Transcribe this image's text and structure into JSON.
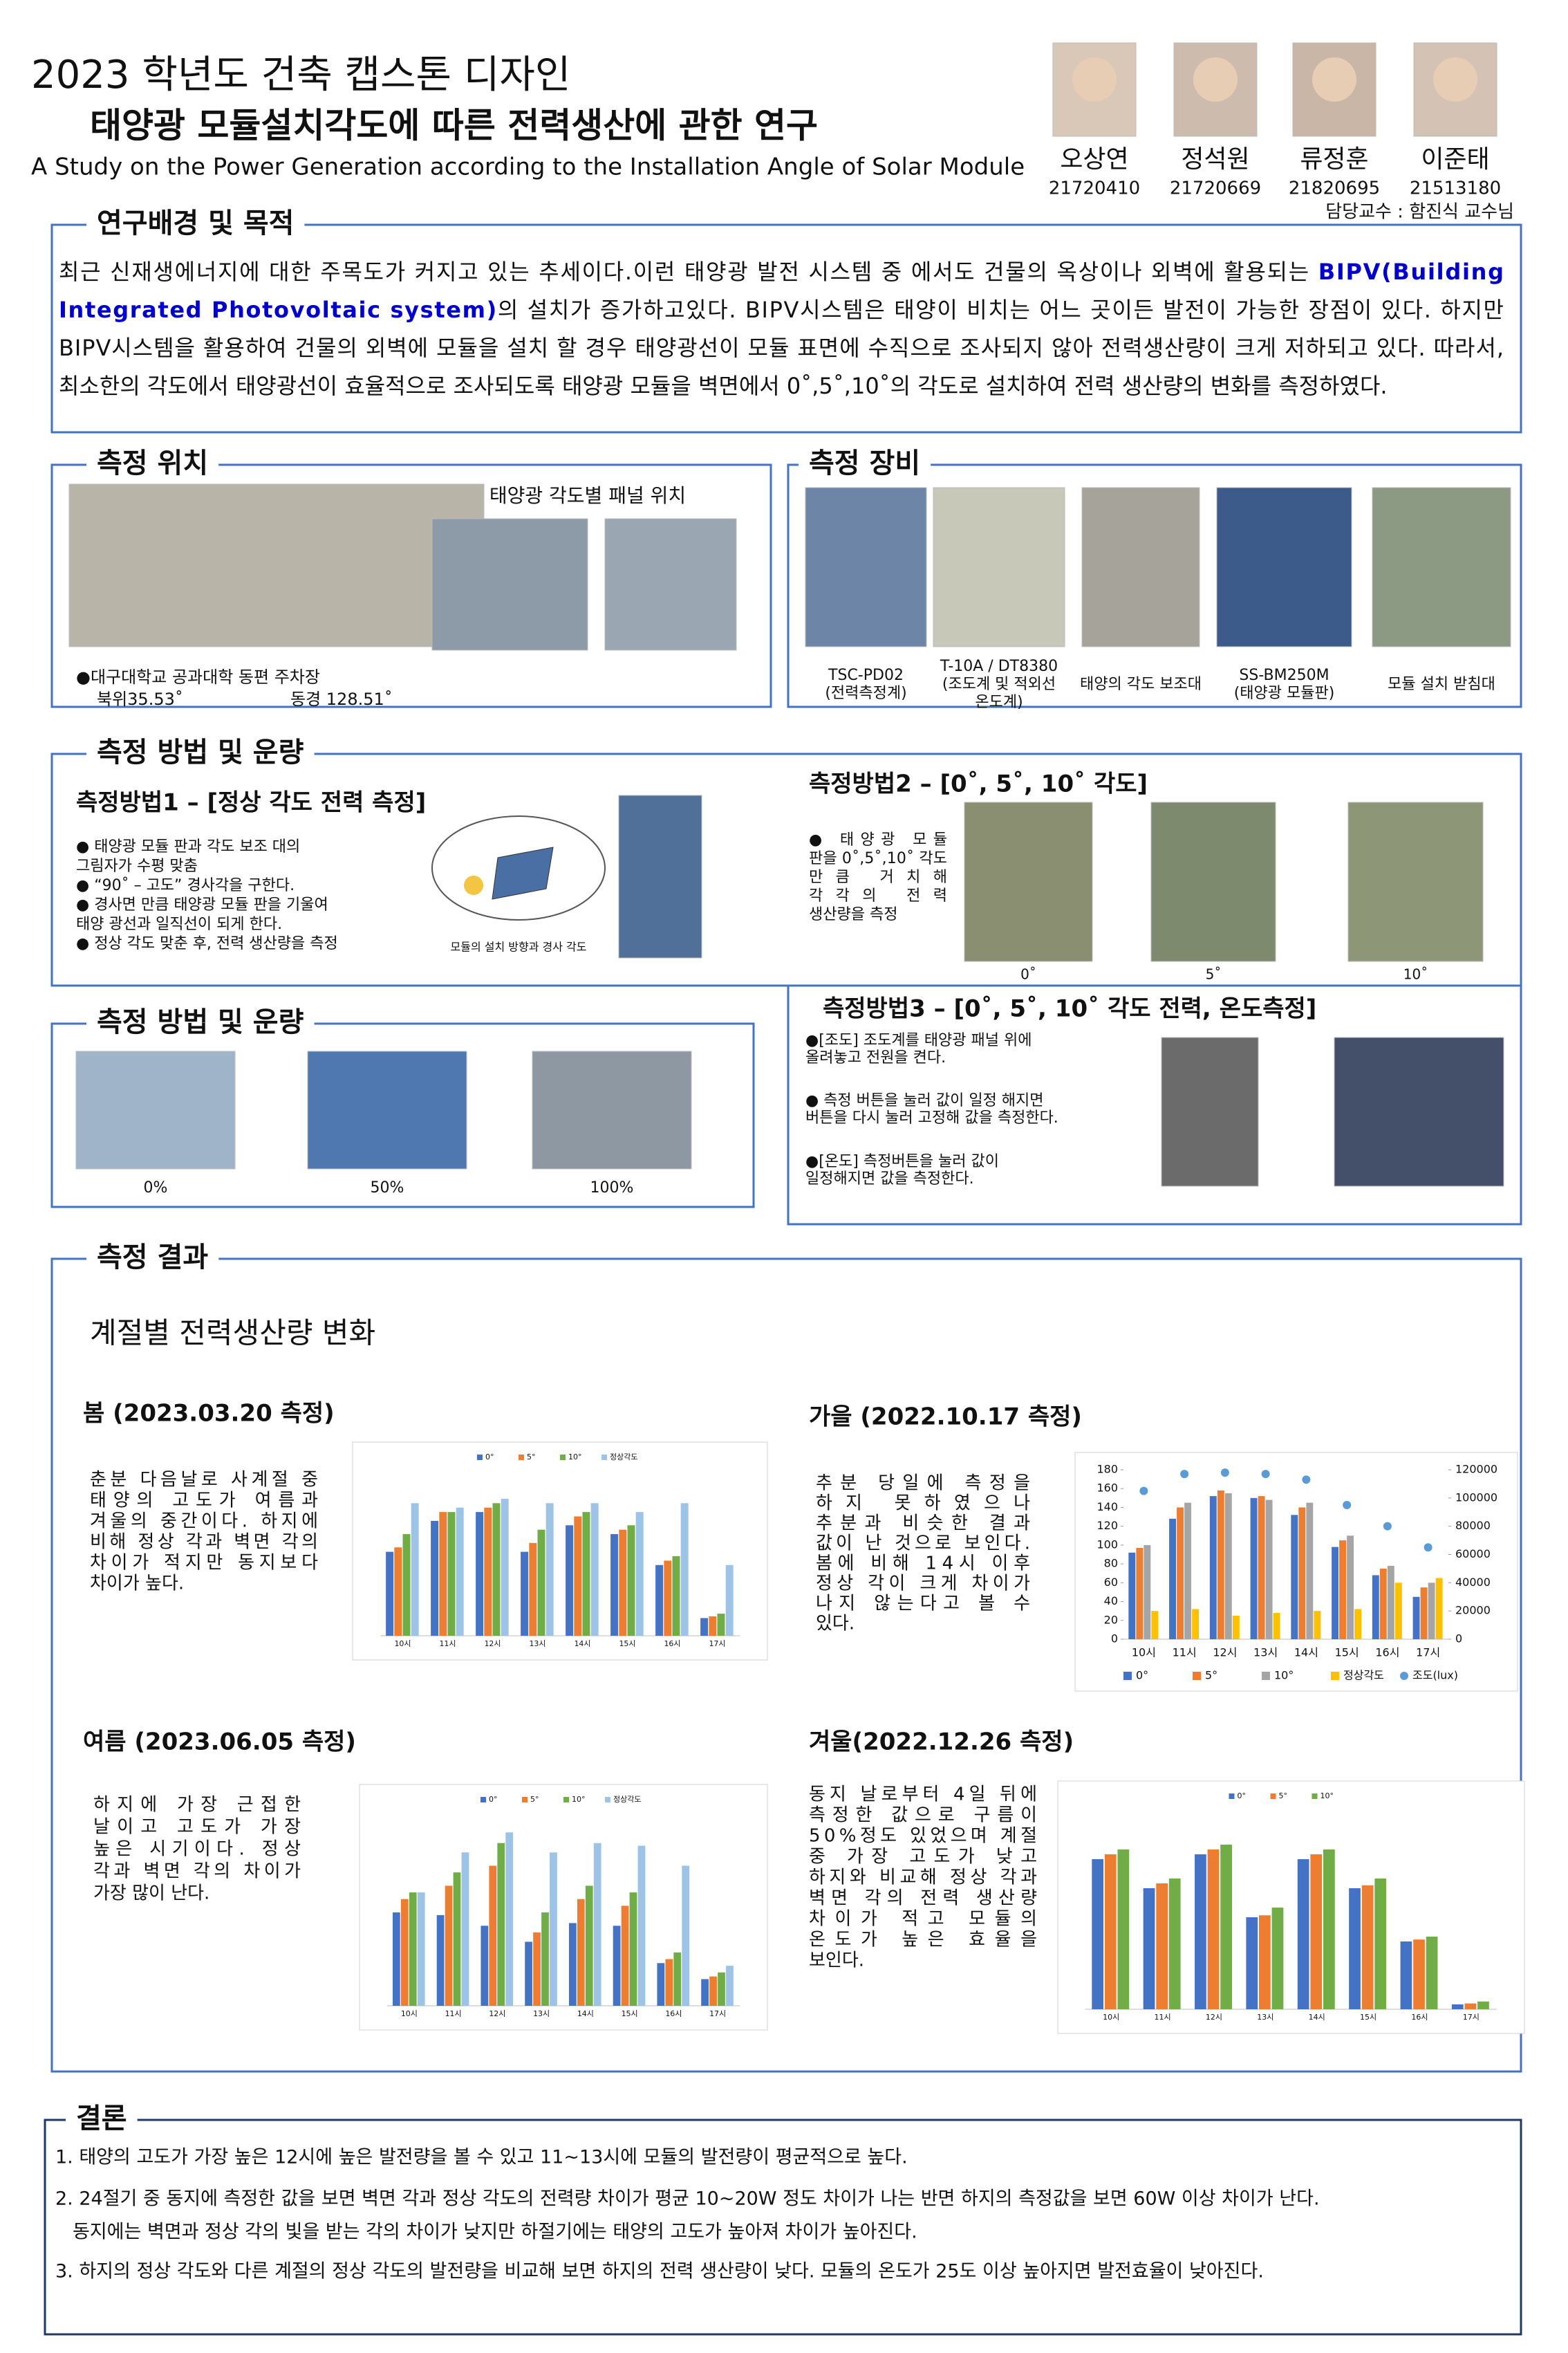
{
  "header": {
    "title": "2023 학년도 건축 캡스톤 디자인",
    "subtitle": "태양광 모듈설치각도에 따른 전력생산에 관한 연구",
    "english_title": "A Study on the Power Generation according to the Installation Angle of Solar Module"
  },
  "members": [
    {
      "name": "오상연",
      "id": "21720410"
    },
    {
      "name": "정석원",
      "id": "21720669"
    },
    {
      "name": "류정훈",
      "id": "21820695"
    },
    {
      "name": "이준태",
      "id": "21513180"
    }
  ],
  "advisor": "담당교수 : 함진식 교수님",
  "background": {
    "heading": "연구배경 및 목적",
    "lines": [
      {
        "before": "최근 신재생에너지에 대한 주목도가 커지고 있는 추세이다.이런 태양광 발전 시스템 중 에서도 건물의 옥상이나 외벽에 활용되는 ",
        "highlight": "BIPV(Building"
      },
      {
        "highlight": "Integrated Photovoltaic system)",
        "after": "의 설치가 증가하고있다. BIPV시스템은 태양이 비치는 어느 곳이든 발전이 가능한 장점이 있다. 하지만"
      },
      {
        "before": "BIPV시스템을 활용하여 건물의 외벽에 모듈을 설치 할 경우 태양광선이 모듈 표면에 수직으로 조사되지 않아 전력생산량이 크게 저하되고 있다. 따라서,"
      },
      {
        "before": "최소한의 각도에서 태양광선이 효율적으로 조사되도록 태양광 모듈을 벽면에서 0˚,5˚,10˚의 각도로 설치하여 전력 생산량의 변화를 측정하였다."
      }
    ]
  },
  "location": {
    "heading": "측정 위치",
    "panel_label": "태양광 각도별 패널 위치",
    "caption": "●대구대학교 공과대학 동편 주차장",
    "latitude": "북위35.53˚",
    "longitude": "동경 128.51˚"
  },
  "equipment": {
    "heading": "측정 장비",
    "items": [
      [
        "TSC-PD02",
        "(전력측정계)"
      ],
      [
        "T-10A / DT8380",
        "(조도계 및 적외선",
        "온도계)"
      ],
      [
        "태양의 각도 보조대"
      ],
      [
        "SS-BM250M",
        "(태양광 모듈판)"
      ],
      [
        "모듈 설치 받침대"
      ]
    ]
  },
  "method": {
    "heading": "측정 방법 및 운량",
    "method1": {
      "title": "측정방법1 – [정상 각도 전력 측정]",
      "lines": [
        "● 태양광 모듈 판과 각도 보조 대의",
        "   그림자가 수평 맞춤",
        "● “90˚ – 고도” 경사각을 구한다.",
        "● 경사면 만큼 태양광 모듈 판을 기울여",
        "   태양 광선과 일직선이 되게 한다.",
        "● 정상 각도 맞춘 후, 전력 생산량을 측정"
      ],
      "diagram_caption": "모듈의 설치 방향과 경사 각도"
    },
    "method2": {
      "title": "측정방법2 – [0˚, 5˚, 10˚ 각도]",
      "lines": [
        "● 태양광 모듈",
        "판을 0˚,5˚,10˚ 각도",
        "만큼 거치해",
        "각각의 전력",
        "생산량을 측정"
      ],
      "photo_labels": [
        "0˚",
        "5˚",
        "10˚"
      ]
    },
    "method3": {
      "title": "측정방법3 – [0˚, 5˚, 10˚ 각도 전력, 온도측정]",
      "lines": [
        "●[조도] 조도계를 태양광 패널 위에",
        "올려놓고 전원을 켠다.",
        "● 측정 버튼을 눌러 값이 일정 해지면",
        "버튼을 다시 눌러 고정해 값을 측정한다.",
        "●[온도] 측정버튼을 눌러 값이",
        "일정해지면 값을 측정한다."
      ]
    }
  },
  "cloud": {
    "heading": "측정 방법 및 운량",
    "labels": [
      "0%",
      "50%",
      "100%"
    ]
  },
  "results": {
    "heading": "측정 결과",
    "subtitle": "계절별 전력생산량 변화",
    "spring": {
      "title": "봄 (2023.03.20 측정)",
      "lines": [
        "춘분 다음날로 사계절 중",
        "태양의 고도가 여름과",
        "겨울의 중간이다. 하지에",
        "비해 정상 각과 벽면 각의",
        "차이가 적지만 동지보다",
        "차이가 높다."
      ]
    },
    "fall": {
      "title": "가을 (2022.10.17 측정)",
      "lines": [
        "추분 당일에 측정을",
        "하지 못하였으나",
        "추분과 비슷한 결과",
        "값이 난 것으로 보인다.",
        "봄에 비해 14시 이후",
        "정상 각이 크게 차이가",
        "나지 않는다고 볼 수",
        "있다."
      ]
    },
    "summer": {
      "title": "여름 (2023.06.05 측정)",
      "lines": [
        "하지에 가장 근접한",
        "날이고 고도가 가장",
        "높은 시기이다. 정상",
        "각과 벽면 각의 차이가",
        "가장 많이 난다."
      ]
    },
    "winter": {
      "title": "겨울(2022.12.26 측정)",
      "lines": [
        "동지 날로부터 4일 뒤에",
        "측정한 값으로 구름이",
        "50%정도 있었으며 계절",
        "중 가장 고도가 낮고",
        "하지와 비교해 정상 각과",
        "벽면 각의 전력 생산량",
        "차이가 적고 모듈의",
        "온도가 높은 효율을",
        "보인다."
      ]
    }
  },
  "chart_data": [
    {
      "type": "bar",
      "categories": [
        "10시",
        "11시",
        "12시",
        "13시",
        "14시",
        "15시",
        "16시",
        "17시"
      ],
      "ylim": [
        0,
        180
      ],
      "series": [
        {
          "name": "0°",
          "color": "#4472c4",
          "values": [
            95,
            130,
            140,
            95,
            125,
            115,
            80,
            20
          ]
        },
        {
          "name": "5°",
          "color": "#ed7d31",
          "values": [
            100,
            140,
            145,
            105,
            135,
            120,
            85,
            22
          ]
        },
        {
          "name": "10°",
          "color": "#70ad47",
          "values": [
            115,
            140,
            150,
            120,
            140,
            125,
            90,
            25
          ]
        },
        {
          "name": "정상각도",
          "color": "#9dc3e6",
          "values": [
            150,
            145,
            155,
            150,
            150,
            140,
            150,
            80
          ]
        }
      ]
    },
    {
      "type": "bar",
      "categories": [
        "10시",
        "11시",
        "12시",
        "13시",
        "14시",
        "15시",
        "16시",
        "17시"
      ],
      "ylim": [
        0,
        180
      ],
      "yticks": [
        0,
        20,
        40,
        60,
        80,
        100,
        120,
        140,
        160,
        180
      ],
      "y2lim": [
        0,
        120000
      ],
      "y2ticks": [
        0,
        20000,
        40000,
        60000,
        80000,
        100000,
        120000
      ],
      "series": [
        {
          "name": "0°",
          "color": "#4472c4",
          "values": [
            92,
            128,
            152,
            150,
            132,
            98,
            68,
            45
          ]
        },
        {
          "name": "5°",
          "color": "#ed7d31",
          "values": [
            97,
            140,
            158,
            152,
            140,
            105,
            75,
            55
          ]
        },
        {
          "name": "10°",
          "color": "#a5a5a5",
          "values": [
            100,
            145,
            155,
            148,
            145,
            110,
            78,
            60
          ]
        },
        {
          "name": "정상각도",
          "color": "#ffc000",
          "values": [
            30,
            32,
            25,
            28,
            30,
            32,
            60,
            65
          ]
        },
        {
          "name": "조도(lux)",
          "color": "#5b9bd5",
          "type": "scatter",
          "axis": "y2",
          "values": [
            105000,
            117000,
            118000,
            117000,
            113000,
            95000,
            80000,
            65000
          ]
        }
      ]
    },
    {
      "type": "bar",
      "categories": [
        "10시",
        "11시",
        "12시",
        "13시",
        "14시",
        "15시",
        "16시",
        "17시"
      ],
      "ylim": [
        0,
        140
      ],
      "series": [
        {
          "name": "0°",
          "color": "#4472c4",
          "values": [
            70,
            68,
            60,
            48,
            62,
            60,
            32,
            20
          ]
        },
        {
          "name": "5°",
          "color": "#ed7d31",
          "values": [
            80,
            90,
            105,
            55,
            80,
            75,
            35,
            22
          ]
        },
        {
          "name": "10°",
          "color": "#70ad47",
          "values": [
            85,
            100,
            122,
            70,
            90,
            85,
            40,
            25
          ]
        },
        {
          "name": "정상각도",
          "color": "#9dc3e6",
          "values": [
            85,
            115,
            130,
            115,
            122,
            120,
            105,
            30
          ]
        }
      ]
    },
    {
      "type": "bar",
      "categories": [
        "10시",
        "11시",
        "12시",
        "13시",
        "14시",
        "15시",
        "16시",
        "17시"
      ],
      "ylim": [
        0,
        200
      ],
      "series": [
        {
          "name": "0°",
          "color": "#4472c4",
          "values": [
            155,
            125,
            160,
            95,
            155,
            125,
            70,
            5
          ]
        },
        {
          "name": "5°",
          "color": "#ed7d31",
          "values": [
            160,
            130,
            165,
            97,
            160,
            128,
            72,
            6
          ]
        },
        {
          "name": "10°",
          "color": "#70ad47",
          "values": [
            165,
            135,
            170,
            105,
            165,
            135,
            75,
            8
          ]
        }
      ]
    }
  ],
  "conclusion": {
    "heading": "결론",
    "lines": [
      "1. 태양의 고도가 가장 높은 12시에 높은 발전량을 볼 수 있고 11~13시에 모듈의 발전량이 평균적으로 높다.",
      "2. 24절기 중 동지에 측정한 값을 보면 벽면 각과 정상 각도의 전력량 차이가 평균 10~20W 정도 차이가 나는 반면 하지의 측정값을 보면 60W 이상 차이가 난다.",
      "동지에는 벽면과 정상 각의 빛을 받는 각의 차이가 낮지만 하절기에는 태양의 고도가 높아져 차이가 높아진다.",
      "3. 하지의 정상 각도와 다른 계절의 정상 각도의 발전량을 비교해 보면 하지의 전력 생산량이 낮다. 모듈의 온도가 25도 이상 높아지면 발전효율이 낮아진다."
    ]
  }
}
